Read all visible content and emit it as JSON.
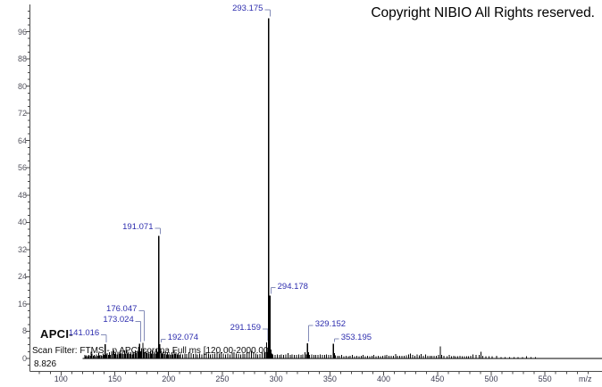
{
  "header": {
    "copyright": "Copyright NIBIO All Rights reserved."
  },
  "annotations": {
    "ionization_label": "APCI-",
    "scan_filter": "Scan Filter: FTMS - p APCI corona Full ms [120.00-2000.00]",
    "retention_time": "8.826"
  },
  "colors": {
    "background": "#ffffff",
    "peak": "#000000",
    "peak_label": "#2d2dae",
    "label_connector": "#848cb8",
    "axis_line": "#4a4a4a",
    "x_tick_label": "#3d3d52",
    "y_tick_label": "#55555f",
    "copyright_text": "#000000"
  },
  "chart_data": {
    "type": "bar",
    "subtype": "mass-spectrum",
    "title": "",
    "xlabel": "m/z",
    "ylabel": "",
    "grid": false,
    "legend": false,
    "x_axis": {
      "visible_min": 71.5,
      "visible_max": 603,
      "major_ticks": [
        100,
        150,
        200,
        250,
        300,
        350,
        400,
        450,
        500,
        550
      ],
      "minor_step": 10,
      "scan_range": [
        120.0,
        2000.0
      ]
    },
    "y_axis": {
      "visible_min": 0,
      "visible_max": 104,
      "major_ticks": [
        0,
        8,
        16,
        24,
        32,
        40,
        48,
        56,
        64,
        72,
        80,
        88,
        96
      ],
      "minor_step": 2
    },
    "labeled_peaks": [
      {
        "mz": 141.016,
        "intensity": 4.2,
        "label": "141.016",
        "side": "right",
        "label_intensity": 7.5
      },
      {
        "mz": 173.024,
        "intensity": 4.3,
        "label": "173.024",
        "side": "right",
        "label_intensity": 11.4
      },
      {
        "mz": 176.047,
        "intensity": 4.6,
        "label": "176.047",
        "side": "right",
        "label_intensity": 14.6
      },
      {
        "mz": 191.071,
        "intensity": 36.0,
        "label": "191.071",
        "side": "right",
        "label_intensity": 38.8
      },
      {
        "mz": 192.074,
        "intensity": 4.2,
        "label": "192.074",
        "side": "left",
        "label_intensity": 6.2
      },
      {
        "mz": 291.159,
        "intensity": 4.7,
        "label": "291.159",
        "side": "right",
        "label_intensity": 9.2
      },
      {
        "mz": 293.175,
        "intensity": 100.0,
        "label": "293.175",
        "side": "right",
        "label_intensity": 102.9
      },
      {
        "mz": 294.178,
        "intensity": 18.5,
        "label": "294.178",
        "side": "left",
        "label_intensity": 21.3
      },
      {
        "mz": 329.152,
        "intensity": 4.4,
        "label": "329.152",
        "side": "left",
        "label_intensity": 10.2
      },
      {
        "mz": 353.195,
        "intensity": 4.3,
        "label": "353.195",
        "side": "left",
        "label_intensity": 6.3
      }
    ],
    "noise_peaks": [
      [
        122,
        1.1
      ],
      [
        123,
        0.7
      ],
      [
        124,
        0.9
      ],
      [
        125,
        0.7
      ],
      [
        126,
        1.0
      ],
      [
        127,
        0.8
      ],
      [
        128,
        1.9
      ],
      [
        129,
        1.4
      ],
      [
        130,
        0.8
      ],
      [
        131,
        1.0
      ],
      [
        132,
        0.7
      ],
      [
        133,
        1.2
      ],
      [
        134,
        0.8
      ],
      [
        135,
        1.7
      ],
      [
        136,
        0.9
      ],
      [
        137,
        1.1
      ],
      [
        138,
        0.8
      ],
      [
        139,
        1.5
      ],
      [
        140,
        1.0
      ],
      [
        142,
        1.2
      ],
      [
        143,
        1.6
      ],
      [
        144,
        1.0
      ],
      [
        145,
        1.8
      ],
      [
        146,
        1.1
      ],
      [
        147,
        2.1
      ],
      [
        148,
        1.2
      ],
      [
        149,
        2.4
      ],
      [
        150,
        1.3
      ],
      [
        151,
        1.6
      ],
      [
        152,
        1.2
      ],
      [
        153,
        2.0
      ],
      [
        154,
        1.5
      ],
      [
        155,
        2.2
      ],
      [
        156,
        1.4
      ],
      [
        157,
        2.0
      ],
      [
        158,
        1.3
      ],
      [
        159,
        2.3
      ],
      [
        160,
        1.4
      ],
      [
        161,
        2.5
      ],
      [
        162,
        1.5
      ],
      [
        163,
        2.0
      ],
      [
        164,
        1.3
      ],
      [
        165,
        1.8
      ],
      [
        166,
        1.2
      ],
      [
        167,
        2.0
      ],
      [
        168,
        1.4
      ],
      [
        169,
        2.4
      ],
      [
        170,
        1.6
      ],
      [
        171,
        2.2
      ],
      [
        172,
        1.8
      ],
      [
        174,
        2.1
      ],
      [
        175,
        3.0
      ],
      [
        177,
        2.6
      ],
      [
        178,
        1.8
      ],
      [
        179,
        2.2
      ],
      [
        180,
        1.6
      ],
      [
        181,
        2.0
      ],
      [
        182,
        1.4
      ],
      [
        183,
        2.2
      ],
      [
        184,
        1.5
      ],
      [
        185,
        2.4
      ],
      [
        186,
        1.5
      ],
      [
        187,
        2.0
      ],
      [
        188,
        1.5
      ],
      [
        189,
        2.8
      ],
      [
        190,
        2.0
      ],
      [
        193,
        2.2
      ],
      [
        194,
        1.4
      ],
      [
        195,
        2.0
      ],
      [
        196,
        1.3
      ],
      [
        197,
        1.8
      ],
      [
        198,
        1.2
      ],
      [
        199,
        1.8
      ],
      [
        200,
        1.2
      ],
      [
        201,
        1.5
      ],
      [
        202,
        1.1
      ],
      [
        203,
        1.8
      ],
      [
        204,
        1.2
      ],
      [
        205,
        2.2
      ],
      [
        206,
        1.3
      ],
      [
        207,
        1.8
      ],
      [
        208,
        1.2
      ],
      [
        209,
        1.6
      ],
      [
        210,
        1.1
      ],
      [
        211,
        1.4
      ],
      [
        213,
        1.2
      ],
      [
        215,
        1.5
      ],
      [
        217,
        1.3
      ],
      [
        219,
        1.8
      ],
      [
        221,
        1.6
      ],
      [
        223,
        1.3
      ],
      [
        225,
        1.5
      ],
      [
        227,
        1.2
      ],
      [
        229,
        1.4
      ],
      [
        231,
        1.2
      ],
      [
        233,
        1.5
      ],
      [
        235,
        1.8
      ],
      [
        237,
        1.4
      ],
      [
        239,
        1.2
      ],
      [
        241,
        1.3
      ],
      [
        243,
        1.5
      ],
      [
        245,
        1.8
      ],
      [
        247,
        1.4
      ],
      [
        249,
        1.8
      ],
      [
        251,
        1.5
      ],
      [
        253,
        1.2
      ],
      [
        255,
        1.4
      ],
      [
        257,
        1.2
      ],
      [
        259,
        1.7
      ],
      [
        261,
        1.8
      ],
      [
        263,
        1.4
      ],
      [
        265,
        1.3
      ],
      [
        267,
        1.2
      ],
      [
        269,
        1.4
      ],
      [
        271,
        1.3
      ],
      [
        273,
        1.8
      ],
      [
        275,
        1.8
      ],
      [
        277,
        2.2
      ],
      [
        279,
        1.8
      ],
      [
        281,
        1.4
      ],
      [
        283,
        1.2
      ],
      [
        285,
        1.3
      ],
      [
        287,
        1.8
      ],
      [
        289,
        2.2
      ],
      [
        290,
        1.6
      ],
      [
        292,
        1.8
      ],
      [
        295.2,
        2.6
      ],
      [
        296,
        1.4
      ],
      [
        297,
        1.2
      ],
      [
        299,
        1.0
      ],
      [
        301,
        1.2
      ],
      [
        303,
        1.0
      ],
      [
        305,
        1.2
      ],
      [
        307,
        1.0
      ],
      [
        309,
        1.2
      ],
      [
        311,
        1.6
      ],
      [
        313,
        1.0
      ],
      [
        315,
        1.2
      ],
      [
        317,
        1.0
      ],
      [
        319,
        1.0
      ],
      [
        321,
        1.2
      ],
      [
        323,
        1.0
      ],
      [
        325,
        1.2
      ],
      [
        327,
        1.8
      ],
      [
        328,
        1.2
      ],
      [
        330.2,
        1.8
      ],
      [
        331,
        1.0
      ],
      [
        333,
        1.2
      ],
      [
        335,
        1.0
      ],
      [
        337,
        1.1
      ],
      [
        339,
        1.0
      ],
      [
        341,
        1.2
      ],
      [
        343,
        1.0
      ],
      [
        345,
        1.0
      ],
      [
        347,
        1.2
      ],
      [
        349,
        1.1
      ],
      [
        351,
        1.0
      ],
      [
        354.2,
        1.6
      ],
      [
        355,
        0.9
      ],
      [
        357,
        0.8
      ],
      [
        359,
        0.8
      ],
      [
        361,
        1.0
      ],
      [
        363,
        0.7
      ],
      [
        365,
        0.8
      ],
      [
        367,
        0.7
      ],
      [
        369,
        0.8
      ],
      [
        371,
        1.0
      ],
      [
        373,
        0.7
      ],
      [
        375,
        0.8
      ],
      [
        377,
        0.7
      ],
      [
        379,
        0.8
      ],
      [
        381,
        1.0
      ],
      [
        383,
        0.7
      ],
      [
        385,
        0.8
      ],
      [
        387,
        0.7
      ],
      [
        389,
        0.8
      ],
      [
        391,
        1.0
      ],
      [
        393,
        0.7
      ],
      [
        395,
        0.8
      ],
      [
        397,
        0.7
      ],
      [
        399,
        0.8
      ],
      [
        401,
        0.9
      ],
      [
        403,
        1.1
      ],
      [
        405,
        0.8
      ],
      [
        407,
        0.8
      ],
      [
        409,
        0.8
      ],
      [
        411,
        1.3
      ],
      [
        413,
        0.8
      ],
      [
        415,
        0.8
      ],
      [
        417,
        0.8
      ],
      [
        419,
        0.8
      ],
      [
        421,
        0.9
      ],
      [
        423,
        1.2
      ],
      [
        425,
        1.4
      ],
      [
        427,
        1.0
      ],
      [
        429,
        0.8
      ],
      [
        431,
        1.2
      ],
      [
        433,
        0.9
      ],
      [
        435,
        1.3
      ],
      [
        437,
        0.8
      ],
      [
        439,
        1.2
      ],
      [
        441,
        0.8
      ],
      [
        443,
        0.8
      ],
      [
        445,
        0.8
      ],
      [
        447,
        0.8
      ],
      [
        449,
        0.8
      ],
      [
        451,
        1.0
      ],
      [
        452.6,
        3.6
      ],
      [
        454,
        1.0
      ],
      [
        456,
        0.8
      ],
      [
        459,
        0.7
      ],
      [
        461,
        1.0
      ],
      [
        463,
        0.7
      ],
      [
        465,
        0.8
      ],
      [
        467,
        0.7
      ],
      [
        469,
        0.7
      ],
      [
        471,
        0.8
      ],
      [
        473,
        0.7
      ],
      [
        475,
        0.7
      ],
      [
        477,
        0.7
      ],
      [
        479,
        0.7
      ],
      [
        481,
        0.8
      ],
      [
        483,
        1.2
      ],
      [
        486,
        1.0
      ],
      [
        489,
        1.0
      ],
      [
        490.5,
        2.0
      ],
      [
        492,
        0.8
      ],
      [
        495,
        0.7
      ],
      [
        498,
        0.6
      ],
      [
        501,
        0.6
      ],
      [
        505,
        0.8
      ],
      [
        509,
        0.4
      ],
      [
        513,
        0.4
      ],
      [
        517,
        0.4
      ],
      [
        521,
        0.4
      ],
      [
        525,
        0.4
      ],
      [
        529,
        0.4
      ],
      [
        533,
        0.6
      ],
      [
        537,
        0.4
      ],
      [
        541,
        0.4
      ]
    ]
  }
}
